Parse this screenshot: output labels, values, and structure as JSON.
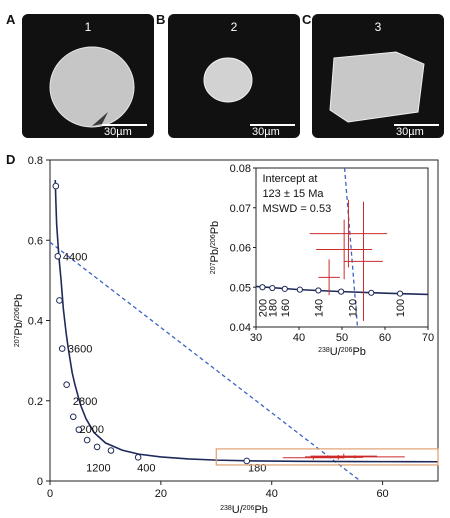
{
  "panels": {
    "A": {
      "letter": "A",
      "grain_number": "1",
      "scale_bar": "30µm"
    },
    "B": {
      "letter": "B",
      "grain_number": "2",
      "scale_bar": "30µm"
    },
    "C": {
      "letter": "C",
      "grain_number": "3",
      "scale_bar": "30µm"
    },
    "D": {
      "letter": "D"
    }
  },
  "chart_data": [
    {
      "type": "line",
      "xlabel_parts": [
        "238",
        "U/",
        "206",
        "Pb"
      ],
      "ylabel_parts": [
        "207",
        "Pb/",
        "206",
        "Pb"
      ],
      "xlim": [
        0,
        70
      ],
      "ylim": [
        0,
        0.8
      ],
      "xticks": [
        0,
        20,
        40,
        60
      ],
      "yticks": [
        0,
        0.2,
        0.4,
        0.6,
        0.8
      ],
      "concordia": [
        [
          0.95,
          0.75
        ],
        [
          1.05,
          0.7
        ],
        [
          1.2,
          0.64
        ],
        [
          1.4,
          0.6
        ],
        [
          1.6,
          0.56
        ],
        [
          2.0,
          0.5
        ],
        [
          2.4,
          0.43
        ],
        [
          2.9,
          0.37
        ],
        [
          3.3,
          0.33
        ],
        [
          4,
          0.27
        ],
        [
          4.5,
          0.24
        ],
        [
          5.5,
          0.19
        ],
        [
          6.5,
          0.155
        ],
        [
          8,
          0.12
        ],
        [
          10,
          0.095
        ],
        [
          13,
          0.077
        ],
        [
          16,
          0.067
        ],
        [
          20,
          0.06
        ],
        [
          25,
          0.055
        ],
        [
          30,
          0.052
        ],
        [
          37,
          0.05
        ],
        [
          45,
          0.049
        ],
        [
          55,
          0.0485
        ],
        [
          65,
          0.0481
        ],
        [
          70,
          0.048
        ]
      ],
      "age_markers": [
        [
          1.05,
          0.735
        ],
        [
          1.4,
          0.56
        ],
        [
          1.7,
          0.45
        ],
        [
          2.2,
          0.33
        ],
        [
          3.0,
          0.24
        ],
        [
          4.2,
          0.16
        ],
        [
          5.2,
          0.128
        ],
        [
          6.7,
          0.102
        ],
        [
          8.5,
          0.085
        ],
        [
          11,
          0.076
        ],
        [
          15.9,
          0.059
        ],
        [
          35.5,
          0.05
        ]
      ],
      "age_labels": [
        {
          "text": "4400",
          "x": 1.6,
          "y": 0.56
        },
        {
          "text": "3600",
          "x": 2.5,
          "y": 0.33
        },
        {
          "text": "2800",
          "x": 3.4,
          "y": 0.2
        },
        {
          "text": "2000",
          "x": 4.6,
          "y": 0.13
        },
        {
          "text": "1200",
          "x": 5.8,
          "y": 0.034
        },
        {
          "text": "400",
          "x": 15,
          "y": 0.034
        },
        {
          "text": "180",
          "x": 35,
          "y": 0.034
        }
      ],
      "discordia": [
        [
          0,
          0.595
        ],
        [
          56,
          0
        ]
      ],
      "data_points": [
        {
          "x": 47.5,
          "y": 0.058,
          "xerr": 5.5,
          "yerr": 0.005
        },
        {
          "x": 52,
          "y": 0.059,
          "xerr": 4.5,
          "yerr": 0.006
        },
        {
          "x": 55,
          "y": 0.06,
          "xerr": 9,
          "yerr": 0.004
        },
        {
          "x": 53,
          "y": 0.062,
          "xerr": 6,
          "yerr": 0.006
        }
      ],
      "zoom_box": {
        "x": [
          30,
          70
        ],
        "y": [
          0.04,
          0.08
        ]
      },
      "colors": {
        "concordia": "#1f2a5a",
        "discordia": "#3b63c4",
        "data": "#cc2b2b",
        "zoom_box": "#e0a070"
      }
    },
    {
      "type": "line",
      "inset": true,
      "xlabel_parts": [
        "238",
        "U/",
        "206",
        "Pb"
      ],
      "ylabel_parts": [
        "207",
        "Pb/",
        "206",
        "Pb"
      ],
      "xlim": [
        30,
        70
      ],
      "ylim": [
        0.04,
        0.08
      ],
      "xticks": [
        30,
        40,
        50,
        60,
        70
      ],
      "yticks": [
        0.04,
        0.05,
        0.06,
        0.07,
        0.08
      ],
      "annotation": [
        "Intercept at",
        "123 ± 15 Ma",
        "MSWD = 0.53"
      ],
      "concordia": [
        [
          30,
          0.0502
        ],
        [
          40,
          0.0494
        ],
        [
          50,
          0.0489
        ],
        [
          60,
          0.0485
        ],
        [
          70,
          0.0482
        ]
      ],
      "age_markers": [
        [
          31.5,
          0.05
        ],
        [
          33.8,
          0.0498
        ],
        [
          36.7,
          0.0496
        ],
        [
          40.2,
          0.0494
        ],
        [
          44.5,
          0.0492
        ],
        [
          49.8,
          0.0489
        ],
        [
          56.8,
          0.0486
        ],
        [
          63.5,
          0.0484
        ]
      ],
      "age_labels": [
        {
          "text": "200",
          "x": 31.5
        },
        {
          "text": "180",
          "x": 33.8
        },
        {
          "text": "160",
          "x": 36.7
        },
        {
          "text": "140",
          "x": 44.5
        },
        {
          "text": "120",
          "x": 52.5
        },
        {
          "text": "100",
          "x": 63.5
        }
      ],
      "discordia": [
        [
          50.6,
          0.08
        ],
        [
          53.6,
          0.04
        ]
      ],
      "data_points": [
        {
          "x": 47,
          "y": 0.0525,
          "xerr": 2.5,
          "yerr": 0.0045
        },
        {
          "x": 50.5,
          "y": 0.0595,
          "xerr": 6.5,
          "yerr": 0.0075
        },
        {
          "x": 51.5,
          "y": 0.0635,
          "xerr": 9,
          "yerr": 0.0085
        },
        {
          "x": 55,
          "y": 0.0565,
          "xerr": 4.5,
          "yerr": 0.015
        }
      ],
      "colors": {
        "concordia": "#1f2a5a",
        "discordia": "#3b63c4",
        "data": "#cc2b2b"
      }
    }
  ]
}
